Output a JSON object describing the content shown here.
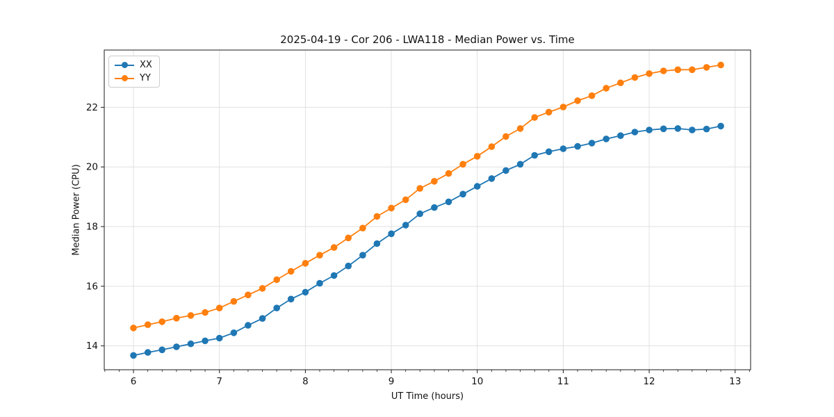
{
  "figure": {
    "background": "#ffffff",
    "frame_color": "#1a1a1a",
    "grid_color": "#e0e0e0"
  },
  "legend": {
    "items": [
      {
        "label": "XX",
        "color": "#1f77b4"
      },
      {
        "label": "YY",
        "color": "#ff7f0e"
      }
    ]
  },
  "chart_data": {
    "type": "line",
    "title": "2025-04-19 - Cor 206 - LWA118 - Median Power vs. Time",
    "xlabel": "UT Time (hours)",
    "ylabel": "Median Power (CPU)",
    "xlim": [
      5.66,
      13.18
    ],
    "ylim": [
      13.2,
      23.92
    ],
    "xticks": [
      6,
      7,
      8,
      9,
      10,
      11,
      12,
      13
    ],
    "yticks": [
      14,
      16,
      18,
      20,
      22
    ],
    "x_minor_step": 0.1666667,
    "grid": true,
    "legend_position": "upper left",
    "x": [
      6.0,
      6.167,
      6.333,
      6.5,
      6.667,
      6.833,
      7.0,
      7.167,
      7.333,
      7.5,
      7.667,
      7.833,
      8.0,
      8.167,
      8.333,
      8.5,
      8.667,
      8.833,
      9.0,
      9.167,
      9.333,
      9.5,
      9.667,
      9.833,
      10.0,
      10.167,
      10.333,
      10.5,
      10.667,
      10.833,
      11.0,
      11.167,
      11.333,
      11.5,
      11.667,
      11.833,
      12.0,
      12.167,
      12.333,
      12.5,
      12.667,
      12.833
    ],
    "series": [
      {
        "name": "XX",
        "color": "#1f77b4",
        "values": [
          13.68,
          13.78,
          13.87,
          13.97,
          14.07,
          14.17,
          14.26,
          14.44,
          14.69,
          14.92,
          15.27,
          15.57,
          15.8,
          16.1,
          16.36,
          16.68,
          17.04,
          17.43,
          17.76,
          18.05,
          18.43,
          18.64,
          18.83,
          19.09,
          19.35,
          19.61,
          19.88,
          20.09,
          20.39,
          20.51,
          20.61,
          20.69,
          20.8,
          20.94,
          21.05,
          21.17,
          21.24,
          21.28,
          21.29,
          21.24,
          21.27,
          21.37
        ]
      },
      {
        "name": "YY",
        "color": "#ff7f0e",
        "values": [
          14.6,
          14.71,
          14.81,
          14.93,
          15.02,
          15.12,
          15.27,
          15.49,
          15.71,
          15.93,
          16.22,
          16.5,
          16.77,
          17.04,
          17.3,
          17.62,
          17.95,
          18.34,
          18.62,
          18.9,
          19.28,
          19.52,
          19.78,
          20.09,
          20.36,
          20.68,
          21.02,
          21.29,
          21.66,
          21.84,
          22.01,
          22.22,
          22.39,
          22.64,
          22.82,
          23.0,
          23.13,
          23.22,
          23.26,
          23.26,
          23.34,
          23.42
        ]
      }
    ]
  }
}
